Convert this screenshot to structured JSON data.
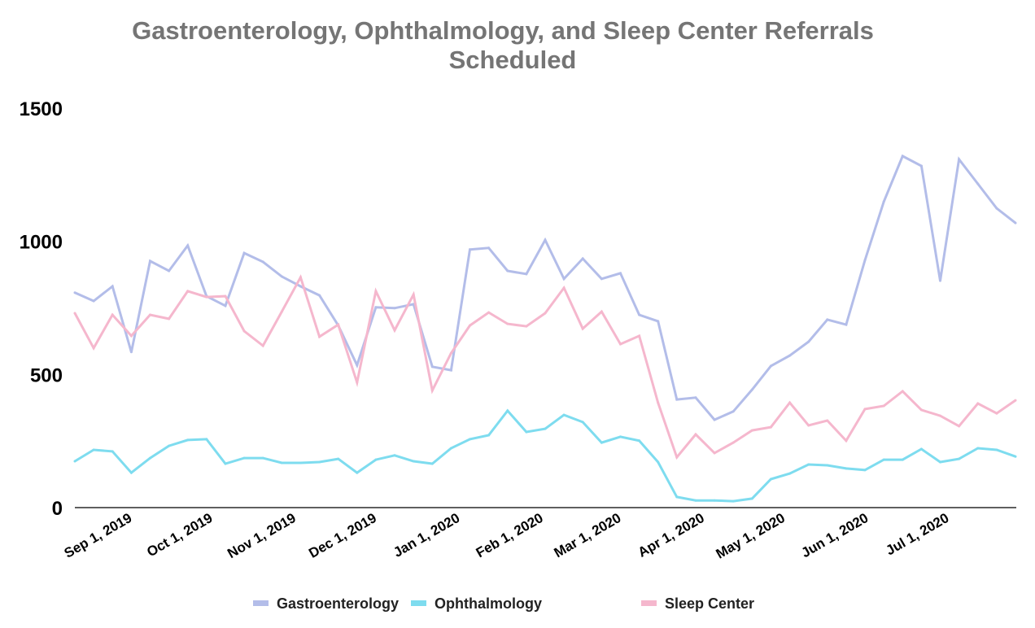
{
  "chart_data": {
    "type": "line",
    "title": "Gastroenterology, Ophthalmology, and Sleep Center Referrals Scheduled",
    "title_lines": [
      "Gastroenterology, Ophthalmology, and Sleep Center Referrals",
      "Scheduled"
    ],
    "xlabel": "",
    "ylabel": "",
    "ylim": [
      0,
      1500
    ],
    "yticks": [
      0,
      500,
      1000,
      1500
    ],
    "ytick_labels": [
      "0",
      "500",
      "1000",
      "1500"
    ],
    "x_start": "2019-08-11",
    "x_interval": "weekly",
    "xtick_labels": [
      "Sep 1, 2019",
      "Oct 1, 2019",
      "Nov 1, 2019",
      "Dec 1, 2019",
      "Jan 1, 2020",
      "Feb 1, 2020",
      "Mar 1, 2020",
      "Apr 1, 2020",
      "May 1, 2020",
      "Jun 1, 2020",
      "Jul 1, 2020"
    ],
    "xtick_day_offsets": [
      21,
      51,
      82,
      112,
      143,
      174,
      203,
      234,
      264,
      295,
      325
    ],
    "grid": false,
    "legend_position": "bottom",
    "series": [
      {
        "name": "Gastroenterology",
        "color": "#b3bde9",
        "values": [
          807,
          776,
          831,
          584,
          926,
          889,
          984,
          794,
          758,
          956,
          923,
          868,
          831,
          797,
          684,
          535,
          752,
          749,
          764,
          529,
          516,
          969,
          975,
          889,
          877,
          1005,
          859,
          935,
          859,
          880,
          724,
          700,
          406,
          413,
          330,
          361,
          443,
          532,
          571,
          623,
          706,
          687,
          929,
          1149,
          1320,
          1283,
          852,
          1308,
          1216,
          1124,
          1069
        ]
      },
      {
        "name": "Ophthalmology",
        "color": "#7edcef",
        "values": [
          174,
          217,
          211,
          131,
          186,
          232,
          254,
          257,
          165,
          186,
          186,
          168,
          168,
          171,
          183,
          131,
          180,
          196,
          174,
          165,
          223,
          257,
          272,
          364,
          284,
          296,
          348,
          321,
          244,
          266,
          251,
          171,
          40,
          27,
          27,
          24,
          34,
          107,
          128,
          162,
          159,
          147,
          141,
          180,
          180,
          220,
          171,
          183,
          223,
          217,
          192
        ]
      },
      {
        "name": "Sleep Center",
        "color": "#f5b7cd",
        "values": [
          730,
          599,
          724,
          645,
          724,
          709,
          813,
          791,
          794,
          663,
          608,
          736,
          865,
          642,
          687,
          470,
          813,
          666,
          800,
          440,
          580,
          684,
          733,
          690,
          681,
          730,
          825,
          672,
          736,
          614,
          645,
          394,
          189,
          275,
          205,
          244,
          290,
          302,
          394,
          309,
          327,
          251,
          370,
          382,
          437,
          367,
          345,
          306,
          391,
          354,
          403
        ]
      }
    ]
  }
}
